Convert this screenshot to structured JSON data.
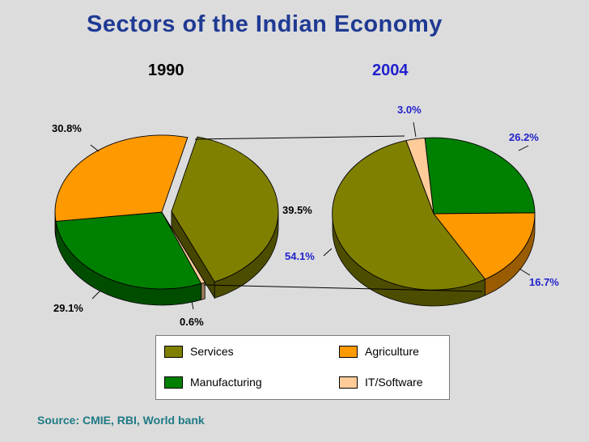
{
  "title": "Sectors of the Indian Economy",
  "source": "Source: CMIE, RBI, World bank",
  "colors": {
    "services": "#808000",
    "agriculture": "#ff9900",
    "manufacturing": "#008000",
    "it_software": "#ffcc99",
    "title": "#1f3a93",
    "blue_labels": "#2222cc",
    "source": "#1f7a85"
  },
  "chart_data": [
    {
      "type": "pie",
      "title": "1990",
      "categories": [
        "Services",
        "Agriculture",
        "Manufacturing",
        "IT/Software"
      ],
      "values": [
        39.5,
        30.8,
        29.1,
        0.6
      ],
      "labels": [
        "39.5%",
        "30.8%",
        "29.1%",
        "0.6%"
      ],
      "exploded": "Services",
      "style": "3d"
    },
    {
      "type": "pie",
      "title": "2004",
      "categories": [
        "Services",
        "Agriculture",
        "Manufacturing",
        "IT/Software"
      ],
      "values": [
        54.1,
        16.7,
        26.2,
        3.0
      ],
      "labels": [
        "54.1%",
        "16.7%",
        "26.2%",
        "3.0%"
      ],
      "style": "3d"
    }
  ],
  "legend": [
    {
      "label": "Services",
      "color": "#808000"
    },
    {
      "label": "Agriculture",
      "color": "#ff9900"
    },
    {
      "label": "Manufacturing",
      "color": "#008000"
    },
    {
      "label": "IT/Software",
      "color": "#ffcc99"
    }
  ]
}
